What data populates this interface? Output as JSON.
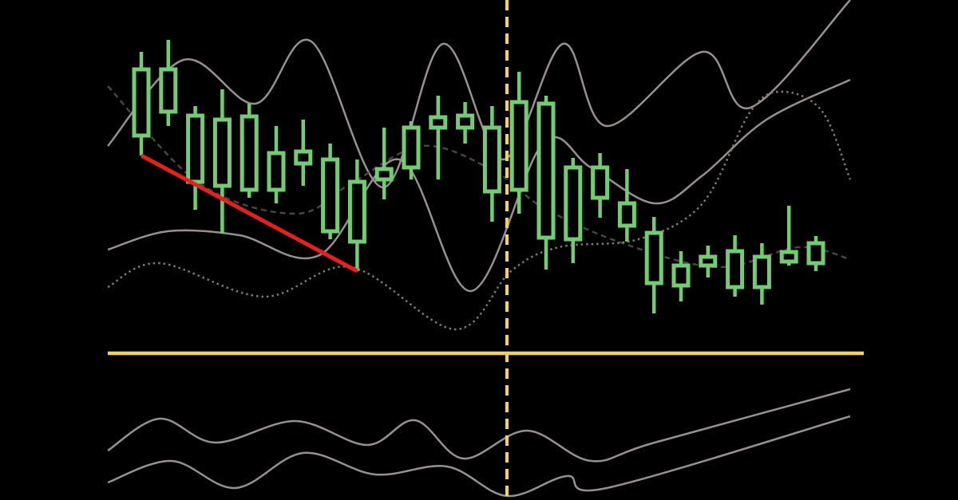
{
  "chart_data": {
    "type": "candlestick",
    "title": "",
    "xlabel": "",
    "ylabel": "",
    "grid": false,
    "colors": {
      "background": "#000000",
      "candle": "#72cc72",
      "band": "#9a8f8f",
      "band_dashed": "#4a4444",
      "band_dotted": "#807878",
      "trendline": "#e8201c",
      "guide": "#f5d35a"
    },
    "candles": [
      {
        "high": 385,
        "low": 255,
        "body_top": 363,
        "body_bottom": 280
      },
      {
        "high": 400,
        "low": 292,
        "body_top": 363,
        "body_bottom": 310
      },
      {
        "high": 317,
        "low": 187,
        "body_top": 305,
        "body_bottom": 222
      },
      {
        "high": 338,
        "low": 157,
        "body_top": 300,
        "body_bottom": 217
      },
      {
        "high": 320,
        "low": 202,
        "body_top": 304,
        "body_bottom": 212
      },
      {
        "high": 292,
        "low": 195,
        "body_top": 258,
        "body_bottom": 212
      },
      {
        "high": 300,
        "low": 217,
        "body_top": 260,
        "body_bottom": 245
      },
      {
        "high": 270,
        "low": 150,
        "body_top": 250,
        "body_bottom": 160
      },
      {
        "high": 250,
        "low": 110,
        "body_top": 222,
        "body_bottom": 147
      },
      {
        "high": 290,
        "low": 200,
        "body_top": 238,
        "body_bottom": 225
      },
      {
        "high": 298,
        "low": 225,
        "body_top": 290,
        "body_bottom": 240
      },
      {
        "high": 330,
        "low": 225,
        "body_top": 303,
        "body_bottom": 290
      },
      {
        "high": 322,
        "low": 270,
        "body_top": 305,
        "body_bottom": 290
      },
      {
        "high": 317,
        "low": 172,
        "body_top": 290,
        "body_bottom": 210
      },
      {
        "high": 360,
        "low": 182,
        "body_top": 322,
        "body_bottom": 212
      },
      {
        "high": 330,
        "low": 112,
        "body_top": 320,
        "body_bottom": 152
      },
      {
        "high": 252,
        "low": 120,
        "body_top": 240,
        "body_bottom": 150
      },
      {
        "high": 258,
        "low": 177,
        "body_top": 240,
        "body_bottom": 202
      },
      {
        "high": 238,
        "low": 147,
        "body_top": 195,
        "body_bottom": 167
      },
      {
        "high": 178,
        "low": 57,
        "body_top": 158,
        "body_bottom": 95
      },
      {
        "high": 135,
        "low": 72,
        "body_top": 117,
        "body_bottom": 92
      },
      {
        "high": 142,
        "low": 102,
        "body_top": 128,
        "body_bottom": 117
      },
      {
        "high": 155,
        "low": 78,
        "body_top": 135,
        "body_bottom": 90
      },
      {
        "high": 145,
        "low": 68,
        "body_top": 128,
        "body_bottom": 90
      },
      {
        "high": 192,
        "low": 117,
        "body_top": 134,
        "body_bottom": 122
      },
      {
        "high": 154,
        "low": 110,
        "body_top": 145,
        "body_bottom": 120
      }
    ],
    "bands": [
      {
        "style": "solid",
        "points": [
          [
            -1.24,
            267
          ],
          [
            1.57,
            375
          ],
          [
            4.23,
            320
          ],
          [
            6.3,
            398
          ],
          [
            8.96,
            215
          ],
          [
            11.18,
            395
          ],
          [
            13.4,
            250
          ],
          [
            15.62,
            395
          ],
          [
            17.25,
            292
          ],
          [
            20.8,
            385
          ],
          [
            22.57,
            315
          ],
          [
            26.27,
            450
          ]
        ]
      },
      {
        "style": "solid",
        "points": [
          [
            -1.24,
            137
          ],
          [
            0.98,
            160
          ],
          [
            3.64,
            155
          ],
          [
            6.6,
            130
          ],
          [
            9.56,
            250
          ],
          [
            12.22,
            85
          ],
          [
            14.88,
            270
          ],
          [
            16.66,
            240
          ],
          [
            19.02,
            195
          ],
          [
            20.8,
            230
          ],
          [
            23.17,
            300
          ],
          [
            26.27,
            350
          ]
        ]
      },
      {
        "style": "dashed",
        "points": [
          [
            -1.24,
            342
          ],
          [
            2.16,
            220
          ],
          [
            5.71,
            182
          ],
          [
            7.78,
            220
          ],
          [
            10.44,
            267
          ],
          [
            13.1,
            235
          ],
          [
            14.88,
            190
          ],
          [
            17.84,
            145
          ],
          [
            21.39,
            115
          ],
          [
            24.35,
            140
          ],
          [
            26.27,
            125
          ]
        ]
      },
      {
        "style": "dotted",
        "points": [
          [
            -1.24,
            90
          ],
          [
            0.68,
            120
          ],
          [
            4.53,
            78
          ],
          [
            7.78,
            115
          ],
          [
            11.63,
            37
          ],
          [
            13.7,
            110
          ],
          [
            15.47,
            140
          ],
          [
            18.43,
            150
          ],
          [
            20.8,
            195
          ],
          [
            22.57,
            310
          ],
          [
            23.76,
            335
          ],
          [
            25.24,
            310
          ],
          [
            26.27,
            225
          ]
        ]
      }
    ],
    "oscillator": [
      {
        "points": [
          [
            -1.24,
            62
          ],
          [
            0.68,
            102
          ],
          [
            2.75,
            72
          ],
          [
            5.71,
            99
          ],
          [
            8.37,
            69
          ],
          [
            10.15,
            100
          ],
          [
            11.93,
            52
          ],
          [
            14.29,
            87
          ],
          [
            16.66,
            49
          ],
          [
            19.02,
            72
          ],
          [
            26.27,
            139
          ]
        ]
      },
      {
        "points": [
          [
            -1.24,
            22
          ],
          [
            1.12,
            49
          ],
          [
            3.49,
            15
          ],
          [
            6.0,
            59
          ],
          [
            8.67,
            32
          ],
          [
            11.33,
            42
          ],
          [
            13.55,
            5
          ],
          [
            15.77,
            30
          ],
          [
            17.25,
            15
          ],
          [
            26.27,
            105
          ]
        ]
      }
    ],
    "trendline": {
      "from": [
        0,
        255
      ],
      "to": [
        8,
        110
      ]
    },
    "horizontal_guide": 7,
    "vertical_guide": 13.55
  }
}
